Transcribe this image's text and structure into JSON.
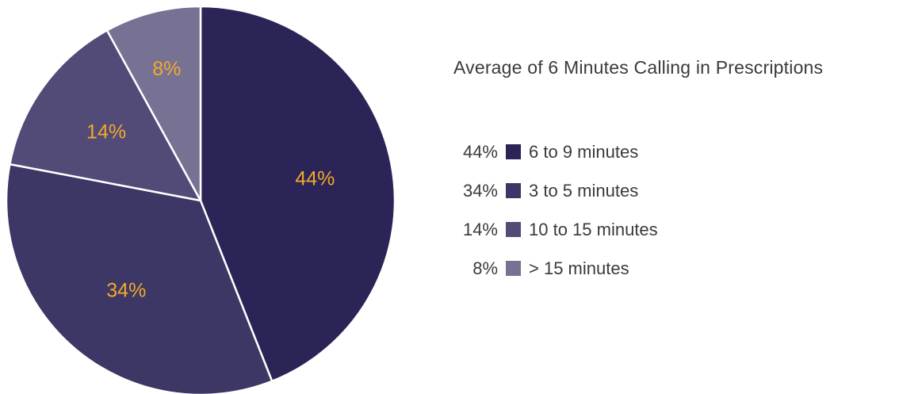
{
  "chart_data": {
    "type": "pie",
    "title": "Average of 6 Minutes Calling in Prescriptions",
    "slices": [
      {
        "label": "6 to 9 minutes",
        "value": 44,
        "display": "44%",
        "color": "#2b2457"
      },
      {
        "label": "3 to 5 minutes",
        "value": 34,
        "display": "34%",
        "color": "#3d3765"
      },
      {
        "label": "10 to 15 minutes",
        "value": 14,
        "display": "14%",
        "color": "#524b78"
      },
      {
        "label": "> 15 minutes",
        "value": 8,
        "display": "8%",
        "color": "#777194"
      }
    ],
    "label_color": "#f2a92a",
    "legend_position": "right"
  }
}
